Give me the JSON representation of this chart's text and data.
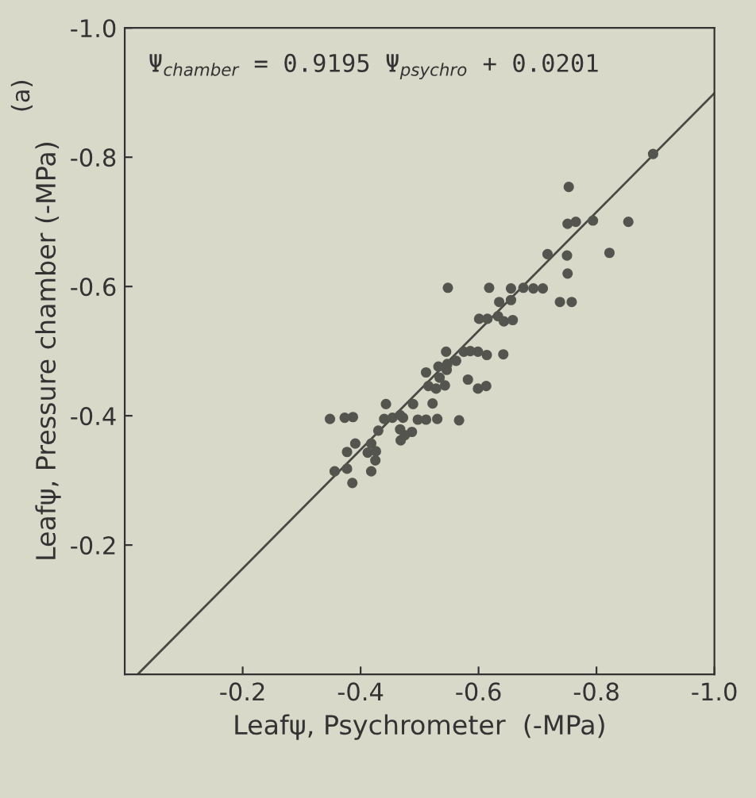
{
  "chart_data": {
    "type": "scatter",
    "xlabel": "Leafψ, Psychrometer  (-MPa)",
    "ylabel": "Leafψ, Pressure chamber (-MPa)",
    "annotations": [
      "Ψ$_{chamber}$ = 0.9195 Ψ$_{psychro}$ + 0.0201",
      "(a)"
    ],
    "xlim": [
      0,
      -1.0
    ],
    "ylim": [
      0,
      -1.0
    ],
    "xticks": [
      -0.2,
      -0.4,
      -0.6,
      -0.8,
      {
        "value": -1.0,
        "label": "-1.0"
      }
    ],
    "yticks": [
      -0.2,
      -0.4,
      -0.6,
      -0.8,
      {
        "value": -1.0,
        "label": "-1.0"
      }
    ],
    "grid": false,
    "series": [
      {
        "color": "#55554f",
        "marker": "circle",
        "x": [
          -0.717,
          -0.548,
          -0.618,
          -0.655,
          -0.676,
          -0.693,
          -0.709,
          -0.635,
          -0.655,
          -0.601,
          -0.615,
          -0.633,
          -0.643,
          -0.658,
          -0.545,
          -0.575,
          -0.586,
          -0.599,
          -0.614,
          -0.642,
          -0.562,
          -0.547,
          -0.532,
          -0.546,
          -0.511,
          -0.534,
          -0.582,
          -0.515,
          -0.528,
          -0.543,
          -0.599,
          -0.613,
          -0.443,
          -0.489,
          -0.522,
          -0.348,
          -0.373,
          -0.387,
          -0.44,
          -0.454,
          -0.467,
          -0.472,
          -0.497,
          -0.511,
          -0.53,
          -0.567,
          -0.43,
          -0.467,
          -0.487,
          -0.475,
          -0.468,
          -0.391,
          -0.418,
          -0.377,
          -0.412,
          -0.426,
          -0.425,
          -0.356,
          -0.377,
          -0.418,
          -0.386,
          -0.896,
          -0.753,
          -0.751,
          -0.765,
          -0.794,
          -0.854,
          -0.75,
          -0.822,
          -0.751,
          -0.738,
          -0.758
        ],
        "values": [
          -0.65,
          -0.598,
          -0.598,
          -0.597,
          -0.598,
          -0.597,
          -0.597,
          -0.576,
          -0.579,
          -0.55,
          -0.55,
          -0.554,
          -0.546,
          -0.548,
          -0.499,
          -0.499,
          -0.5,
          -0.499,
          -0.494,
          -0.495,
          -0.485,
          -0.48,
          -0.476,
          -0.471,
          -0.467,
          -0.459,
          -0.456,
          -0.446,
          -0.442,
          -0.447,
          -0.442,
          -0.446,
          -0.418,
          -0.418,
          -0.419,
          -0.395,
          -0.397,
          -0.398,
          -0.395,
          -0.397,
          -0.401,
          -0.397,
          -0.394,
          -0.394,
          -0.395,
          -0.393,
          -0.377,
          -0.379,
          -0.375,
          -0.37,
          -0.362,
          -0.357,
          -0.357,
          -0.344,
          -0.343,
          -0.345,
          -0.331,
          -0.314,
          -0.318,
          -0.314,
          -0.296,
          -0.805,
          -0.754,
          -0.697,
          -0.7,
          -0.702,
          -0.7,
          -0.648,
          -0.652,
          -0.62,
          -0.576,
          -0.576
        ]
      },
      {
        "type": "line",
        "marker": "none",
        "color": "#4a4a45",
        "x": [
          -0.022,
          -1.0
        ],
        "values": [
          0.0,
          -0.899
        ]
      }
    ]
  }
}
